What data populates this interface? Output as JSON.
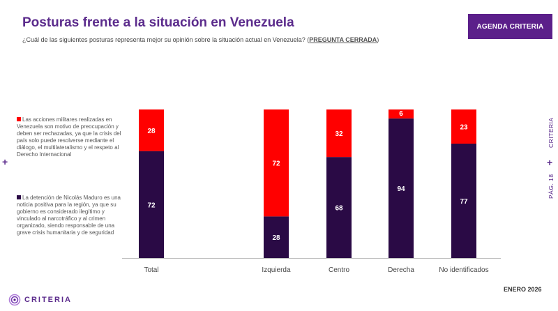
{
  "header": {
    "title": "Posturas frente a la situación en Venezuela",
    "question": "¿Cuál de las siguientes posturas representa mejor su opinión sobre la situación actual en Venezuela? (",
    "question_tag": "PREGUNTA CERRADA",
    "question_end": ")",
    "brand_button": "AGENDA CRITERIA"
  },
  "side": {
    "page": "PÁG. 18",
    "brand": "CRITERIA"
  },
  "footer": {
    "date": "ENERO 2026",
    "logo": "CRITERIA"
  },
  "colors": {
    "red": "#ff0000",
    "dark": "#2a0a45",
    "accent": "#5b1f8a"
  },
  "chart_data": {
    "type": "bar",
    "stacked": true,
    "percent": true,
    "categories": [
      "Total",
      "Izquierda",
      "Centro",
      "Derecha",
      "No identificados"
    ],
    "series": [
      {
        "name": "La detención de Nicolás Maduro es una noticia positiva para la región, ya que su gobierno es considerado ilegítimo y vinculado al narcotráfico y al crimen organizado, siendo responsable de una grave crisis humanitaria y de seguridad",
        "values": [
          72,
          28,
          68,
          94,
          77
        ],
        "color": "#2a0a45"
      },
      {
        "name": "Las acciones militares realizadas en Venezuela son motivo de preocupación y deben ser rechazadas, ya que la crisis del país solo puede resolverse mediante el diálogo, el multilateralismo y el respeto al Derecho Internacional",
        "values": [
          28,
          72,
          32,
          6,
          23
        ],
        "color": "#ff0000"
      }
    ],
    "ylim": [
      0,
      100
    ]
  }
}
